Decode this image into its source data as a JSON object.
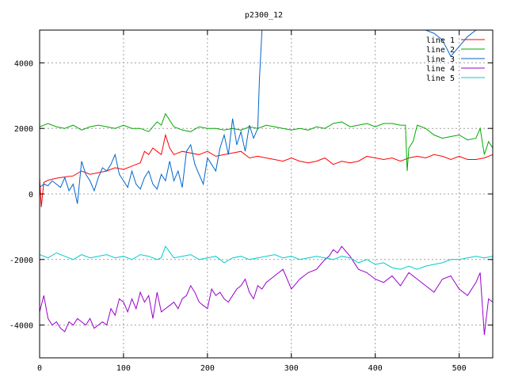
{
  "chart_data": {
    "type": "line",
    "title": "p2300_12",
    "xlabel": "",
    "ylabel": "",
    "xlim": [
      0,
      540
    ],
    "ylim": [
      -5000,
      5000
    ],
    "x_ticks": [
      0,
      100,
      200,
      300,
      400,
      500
    ],
    "y_ticks": [
      -4000,
      -2000,
      0,
      2000,
      4000
    ],
    "grid": true,
    "legend_position": "top-right",
    "series": [
      {
        "name": "line 1",
        "color": "#ff0000",
        "x": [
          0,
          2,
          5,
          10,
          20,
          30,
          40,
          50,
          60,
          70,
          80,
          90,
          100,
          110,
          115,
          120,
          125,
          130,
          135,
          140,
          145,
          150,
          155,
          160,
          170,
          180,
          190,
          200,
          210,
          220,
          230,
          240,
          250,
          260,
          270,
          280,
          290,
          300,
          310,
          320,
          330,
          340,
          350,
          360,
          370,
          380,
          390,
          400,
          410,
          420,
          430,
          440,
          450,
          460,
          470,
          480,
          490,
          500,
          510,
          520,
          530,
          540
        ],
        "y": [
          500,
          -400,
          350,
          420,
          480,
          520,
          550,
          700,
          600,
          650,
          700,
          800,
          750,
          850,
          900,
          950,
          1300,
          1200,
          1400,
          1300,
          1200,
          1800,
          1400,
          1200,
          1300,
          1250,
          1200,
          1300,
          1150,
          1200,
          1250,
          1300,
          1100,
          1150,
          1100,
          1050,
          1000,
          1100,
          1000,
          950,
          1000,
          1100,
          900,
          1000,
          950,
          1000,
          1150,
          1100,
          1050,
          1100,
          1000,
          1100,
          1150,
          1100,
          1200,
          1150,
          1050,
          1150,
          1050,
          1050,
          1100,
          1200
        ]
      },
      {
        "name": "line 2",
        "color": "#00aa00",
        "x": [
          0,
          10,
          20,
          30,
          40,
          50,
          60,
          70,
          80,
          90,
          100,
          110,
          120,
          130,
          140,
          145,
          150,
          160,
          170,
          180,
          190,
          200,
          210,
          220,
          230,
          240,
          250,
          260,
          270,
          280,
          290,
          300,
          310,
          320,
          330,
          340,
          350,
          360,
          370,
          380,
          390,
          400,
          410,
          420,
          430,
          436,
          438,
          440,
          445,
          450,
          460,
          470,
          480,
          490,
          500,
          510,
          520,
          525,
          530,
          535,
          540
        ],
        "y": [
          2050,
          2150,
          2050,
          2000,
          2100,
          1950,
          2050,
          2100,
          2050,
          2000,
          2100,
          2000,
          2000,
          1900,
          2200,
          2100,
          2450,
          2050,
          1950,
          1900,
          2050,
          2000,
          2000,
          1950,
          2000,
          1950,
          2050,
          2000,
          2100,
          2050,
          2000,
          1950,
          2000,
          1950,
          2050,
          2000,
          2150,
          2200,
          2050,
          2100,
          2150,
          2050,
          2150,
          2150,
          2100,
          2100,
          700,
          1400,
          1600,
          2100,
          2000,
          1800,
          1700,
          1750,
          1800,
          1650,
          1700,
          2000,
          1200,
          1600,
          1400
        ]
      },
      {
        "name": "line 3",
        "color": "#0066cc",
        "x": [
          0,
          5,
          10,
          15,
          20,
          25,
          30,
          35,
          40,
          45,
          50,
          55,
          60,
          65,
          70,
          75,
          80,
          85,
          90,
          95,
          100,
          105,
          110,
          115,
          120,
          125,
          130,
          135,
          140,
          145,
          150,
          155,
          160,
          165,
          170,
          175,
          180,
          185,
          190,
          195,
          200,
          205,
          210,
          215,
          220,
          225,
          230,
          235,
          240,
          245,
          250,
          255,
          260,
          262,
          265,
          270,
          280,
          290,
          300,
          310,
          320,
          330,
          340,
          350,
          360,
          370,
          380,
          390,
          400,
          410,
          420,
          430,
          440,
          450,
          460,
          470,
          480,
          490,
          500,
          510,
          520,
          530,
          540
        ],
        "y": [
          200,
          300,
          250,
          400,
          300,
          200,
          500,
          100,
          300,
          -300,
          1000,
          600,
          400,
          100,
          500,
          800,
          700,
          900,
          1200,
          600,
          400,
          200,
          700,
          300,
          150,
          500,
          700,
          300,
          150,
          600,
          400,
          1000,
          400,
          700,
          200,
          1300,
          1500,
          900,
          600,
          300,
          1100,
          900,
          700,
          1400,
          1800,
          1200,
          2300,
          1500,
          1900,
          1300,
          2100,
          1700,
          2000,
          3500,
          5000,
          5000,
          5000,
          5000,
          5000,
          5000,
          5000,
          5000,
          5000,
          5000,
          5000,
          5000,
          5000,
          5000,
          5000,
          5000,
          5000,
          5000,
          5000,
          5000,
          5000,
          4900,
          4700,
          4200,
          4500,
          4800,
          5000,
          5000,
          5000
        ]
      },
      {
        "name": "line 4",
        "color": "#9900cc",
        "x": [
          0,
          5,
          10,
          15,
          20,
          25,
          30,
          35,
          40,
          45,
          50,
          55,
          60,
          65,
          70,
          75,
          80,
          85,
          90,
          95,
          100,
          105,
          110,
          115,
          120,
          125,
          130,
          135,
          140,
          145,
          150,
          155,
          160,
          165,
          170,
          175,
          180,
          185,
          190,
          195,
          200,
          205,
          210,
          215,
          220,
          225,
          230,
          235,
          240,
          245,
          250,
          255,
          260,
          265,
          270,
          280,
          290,
          300,
          310,
          320,
          330,
          340,
          345,
          350,
          355,
          360,
          370,
          380,
          390,
          400,
          410,
          420,
          430,
          440,
          450,
          460,
          470,
          480,
          490,
          500,
          510,
          520,
          525,
          530,
          535,
          540
        ],
        "y": [
          -3600,
          -3100,
          -3800,
          -4000,
          -3900,
          -4100,
          -4200,
          -3900,
          -4000,
          -3800,
          -3900,
          -4000,
          -3800,
          -4100,
          -4000,
          -3900,
          -4000,
          -3500,
          -3700,
          -3200,
          -3300,
          -3600,
          -3200,
          -3500,
          -3000,
          -3300,
          -3100,
          -3800,
          -3000,
          -3600,
          -3500,
          -3400,
          -3300,
          -3500,
          -3200,
          -3100,
          -2800,
          -3000,
          -3300,
          -3400,
          -3500,
          -2900,
          -3100,
          -3000,
          -3200,
          -3300,
          -3100,
          -2900,
          -2800,
          -2600,
          -3000,
          -3200,
          -2800,
          -2900,
          -2700,
          -2500,
          -2300,
          -2900,
          -2600,
          -2400,
          -2300,
          -2000,
          -1900,
          -1700,
          -1800,
          -1600,
          -1900,
          -2300,
          -2400,
          -2600,
          -2700,
          -2500,
          -2800,
          -2400,
          -2600,
          -2800,
          -3000,
          -2600,
          -2500,
          -2900,
          -3100,
          -2700,
          -2400,
          -4300,
          -3200,
          -3300
        ]
      },
      {
        "name": "line 5",
        "color": "#00cccc",
        "x": [
          0,
          10,
          20,
          30,
          40,
          50,
          60,
          70,
          80,
          90,
          100,
          110,
          120,
          130,
          140,
          145,
          150,
          160,
          170,
          180,
          190,
          200,
          210,
          220,
          230,
          240,
          250,
          260,
          270,
          280,
          290,
          300,
          310,
          320,
          330,
          340,
          350,
          360,
          370,
          380,
          390,
          400,
          410,
          420,
          430,
          440,
          450,
          460,
          470,
          480,
          490,
          500,
          510,
          520,
          530,
          540
        ],
        "y": [
          -1850,
          -1950,
          -1800,
          -1900,
          -2000,
          -1850,
          -1950,
          -1900,
          -1850,
          -1950,
          -1900,
          -2000,
          -1850,
          -1900,
          -2000,
          -1950,
          -1600,
          -1950,
          -1900,
          -1850,
          -2000,
          -1950,
          -1900,
          -2100,
          -1950,
          -1900,
          -2000,
          -1950,
          -1900,
          -1850,
          -1950,
          -1900,
          -2000,
          -1950,
          -1900,
          -1950,
          -2000,
          -1900,
          -1950,
          -2100,
          -2000,
          -2150,
          -2100,
          -2250,
          -2300,
          -2200,
          -2300,
          -2200,
          -2150,
          -2100,
          -2000,
          -2000,
          -1950,
          -1900,
          -1950,
          -1900
        ]
      }
    ]
  }
}
